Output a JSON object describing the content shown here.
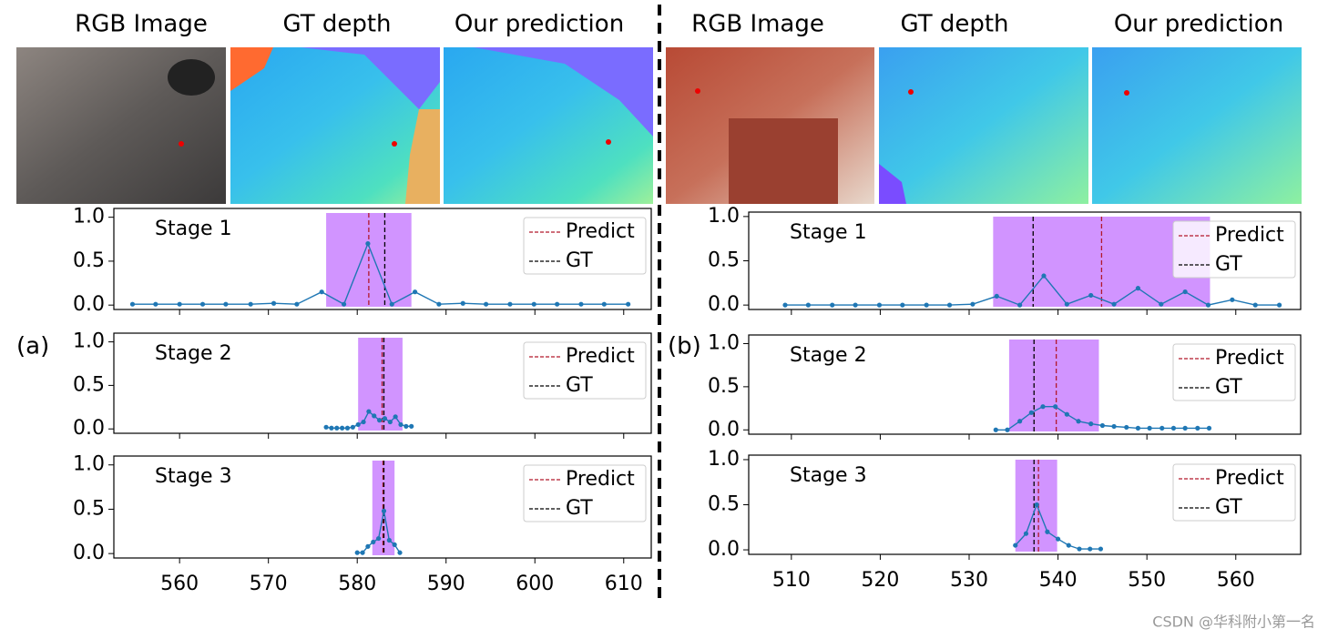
{
  "panels": [
    {
      "label": "(a)",
      "images": [
        "RGB Image",
        "GT depth",
        "Our prediction"
      ]
    },
    {
      "label": "(b)",
      "images": [
        "RGB Image",
        "GT depth",
        "Our prediction"
      ]
    }
  ],
  "watermark": "CSDN @华科附小第一名",
  "chart_data": [
    {
      "type": "line",
      "title": "Stage 1",
      "color": "#1f77b4",
      "x": [
        554.7,
        557.3,
        560,
        562.6,
        565.2,
        568,
        570.6,
        573.2,
        576,
        578.5,
        581.2,
        583.9,
        586.5,
        589.2,
        591.9,
        594.5,
        597.2,
        599.9,
        602.5,
        605.2,
        607.8,
        610.5
      ],
      "values": [
        0.01,
        0.01,
        0.01,
        0.01,
        0.01,
        0.01,
        0.02,
        0.01,
        0.15,
        0.01,
        0.7,
        0.01,
        0.15,
        0.01,
        0.02,
        0.01,
        0.01,
        0.01,
        0.01,
        0.01,
        0.01,
        0.01
      ],
      "band": [
        576.5,
        586.1
      ],
      "band_color": "#cc88ff",
      "markers": [
        {
          "name": "Predict",
          "color": "#b2182b",
          "x": 581.3
        },
        {
          "name": "GT",
          "color": "#000000",
          "x": 583.1
        }
      ],
      "legend": "upper right",
      "xlim": [
        552.6,
        613.1
      ],
      "ylim": [
        -0.05,
        1.1
      ],
      "yticks": [
        {
          "value": 0,
          "label": "0.0"
        },
        {
          "value": 0.5,
          "label": "0.5"
        },
        {
          "value": 1,
          "label": "1.0"
        }
      ]
    },
    {
      "type": "line",
      "title": "Stage 2",
      "color": "#1f77b4",
      "x": [
        576.5,
        577.1,
        577.7,
        578.3,
        578.9,
        579.5,
        580.1,
        580.7,
        581.3,
        581.9,
        582.5,
        583.1,
        583.7,
        584.3,
        584.9,
        585.5,
        586.1
      ],
      "values": [
        0.02,
        0.01,
        0.01,
        0.01,
        0.01,
        0.02,
        0.05,
        0.08,
        0.2,
        0.15,
        0.1,
        0.12,
        0.08,
        0.14,
        0.05,
        0.03,
        0.03
      ],
      "band": [
        580.1,
        585.1
      ],
      "band_color": "#cc88ff",
      "markers": [
        {
          "name": "Predict",
          "color": "#b2182b",
          "x": 582.8
        },
        {
          "name": "GT",
          "color": "#000000",
          "x": 583
        }
      ],
      "legend": "upper right",
      "xlim": [
        552.6,
        613.1
      ],
      "ylim": [
        -0.05,
        1.1
      ],
      "yticks": [
        {
          "value": 0,
          "label": "0.0"
        },
        {
          "value": 0.5,
          "label": "0.5"
        },
        {
          "value": 1,
          "label": "1.0"
        }
      ]
    },
    {
      "type": "line",
      "title": "Stage 3",
      "color": "#1f77b4",
      "x": [
        580,
        580.6,
        581.2,
        581.8,
        582.4,
        583,
        583.6,
        584.2,
        584.8
      ],
      "values": [
        0.01,
        0.01,
        0.08,
        0.13,
        0.17,
        0.48,
        0.15,
        0.1,
        0.01
      ],
      "band": [
        581.7,
        584.2
      ],
      "band_color": "#cc88ff",
      "markers": [
        {
          "name": "Predict",
          "color": "#b2182b",
          "x": 582.9
        },
        {
          "name": "GT",
          "color": "#000000",
          "x": 583
        }
      ],
      "legend": "upper right",
      "xlim": [
        552.6,
        613.1
      ],
      "ylim": [
        -0.05,
        1.1
      ],
      "xticks": [
        560,
        570,
        580,
        590,
        600,
        610
      ],
      "yticks": [
        {
          "value": 0,
          "label": "0.0"
        },
        {
          "value": 0.5,
          "label": "0.5"
        },
        {
          "value": 1,
          "label": "1.0"
        }
      ]
    },
    {
      "type": "line",
      "title": "Stage 1",
      "color": "#1f77b4",
      "x": [
        509.3,
        511.9,
        514.6,
        517.2,
        519.9,
        522.5,
        525.2,
        527.8,
        530.4,
        533.1,
        535.7,
        538.4,
        541,
        543.7,
        546.3,
        549,
        551.6,
        554.3,
        556.9,
        559.6,
        562.2,
        564.9
      ],
      "values": [
        0,
        0,
        0,
        0,
        0,
        0,
        0,
        0,
        0.01,
        0.1,
        0,
        0.33,
        0.01,
        0.11,
        0.01,
        0.19,
        0.01,
        0.15,
        0,
        0.06,
        0,
        0
      ],
      "band": [
        532.7,
        557.1
      ],
      "band_color": "#cc88ff",
      "markers": [
        {
          "name": "Predict",
          "color": "#b2182b",
          "x": 544.9
        },
        {
          "name": "GT",
          "color": "#000000",
          "x": 537.2
        }
      ],
      "legend": "upper right",
      "xlim": [
        505.2,
        567.3
      ],
      "ylim": [
        -0.05,
        1.05
      ],
      "yticks": [
        {
          "value": 0,
          "label": "0.0"
        },
        {
          "value": 0.5,
          "label": "0.5"
        },
        {
          "value": 1,
          "label": "1.0"
        }
      ]
    },
    {
      "type": "line",
      "title": "Stage 2",
      "color": "#1f77b4",
      "x": [
        533,
        534.3,
        535.7,
        537,
        538.3,
        539.7,
        541,
        542.3,
        543.7,
        545,
        546.3,
        547.7,
        549,
        550.3,
        551.7,
        553,
        554.3,
        555.7,
        557
      ],
      "values": [
        0,
        0,
        0.1,
        0.2,
        0.27,
        0.27,
        0.18,
        0.1,
        0.07,
        0.05,
        0.04,
        0.03,
        0.02,
        0.02,
        0.02,
        0.02,
        0.02,
        0.02,
        0.02
      ],
      "band": [
        534.5,
        544.6
      ],
      "band_color": "#cc88ff",
      "markers": [
        {
          "name": "Predict",
          "color": "#b2182b",
          "x": 539.8
        },
        {
          "name": "GT",
          "color": "#000000",
          "x": 537.3
        }
      ],
      "legend": "upper right",
      "xlim": [
        505.2,
        567.3
      ],
      "ylim": [
        -0.05,
        1.1
      ],
      "yticks": [
        {
          "value": 0,
          "label": "0.0"
        },
        {
          "value": 0.5,
          "label": "0.5"
        },
        {
          "value": 1,
          "label": "1.0"
        }
      ]
    },
    {
      "type": "line",
      "title": "Stage 3",
      "color": "#1f77b4",
      "x": [
        535.2,
        536.4,
        537.6,
        538.8,
        540,
        541.2,
        542.4,
        543.6,
        544.8
      ],
      "values": [
        0.05,
        0.18,
        0.5,
        0.2,
        0.12,
        0.05,
        0.01,
        0.01,
        0.01
      ],
      "band": [
        535.2,
        539.9
      ],
      "band_color": "#cc88ff",
      "markers": [
        {
          "name": "Predict",
          "color": "#b2182b",
          "x": 537.8
        },
        {
          "name": "GT",
          "color": "#000000",
          "x": 537.3
        }
      ],
      "legend": "upper right",
      "xlim": [
        505.2,
        567.3
      ],
      "ylim": [
        -0.05,
        1.05
      ],
      "xticks": [
        510,
        520,
        530,
        540,
        550,
        560
      ],
      "yticks": [
        {
          "value": 0,
          "label": "0.0"
        },
        {
          "value": 0.5,
          "label": "0.5"
        },
        {
          "value": 1,
          "label": "1.0"
        }
      ]
    }
  ]
}
